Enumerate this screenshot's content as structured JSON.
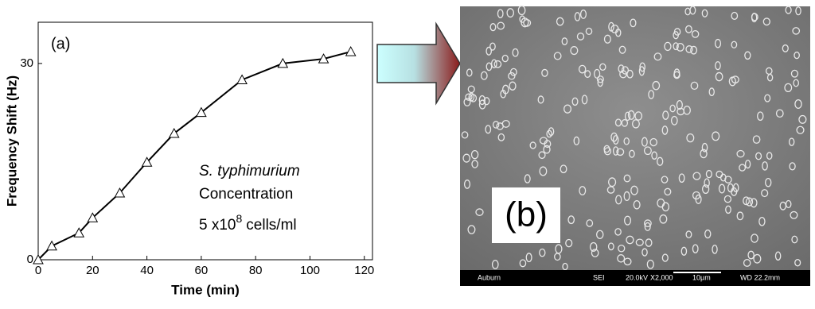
{
  "chart_data": {
    "type": "line",
    "x_label": "Time (min)",
    "y_label": "Frequency Shift (Hz)",
    "panel_label": "(a)",
    "annotations": [
      "S. typhimurium",
      "Concentration"
    ],
    "concentration": {
      "base": "5 x10",
      "exponent": "8",
      "unit": "cells/ml"
    },
    "x": [
      0,
      5,
      15,
      20,
      30,
      40,
      50,
      60,
      75,
      90,
      105,
      115
    ],
    "series": [
      {
        "color": "#000000",
        "values": [
          0,
          2.1,
          4.1,
          6.4,
          10.2,
          14.9,
          19.3,
          22.5,
          27.5,
          30.0,
          30.7,
          31.8
        ]
      }
    ],
    "xlim": [
      0,
      123
    ],
    "xticks": [
      0,
      20,
      40,
      60,
      80,
      100,
      120
    ],
    "ylim": [
      0,
      36.3
    ],
    "yticks": [
      0,
      30
    ]
  },
  "image": {
    "label": "(b)",
    "info_bar": [
      "Auburn",
      "SEI",
      "20.0kV",
      "X2,000",
      "10µm",
      "WD 22.2mm"
    ]
  }
}
